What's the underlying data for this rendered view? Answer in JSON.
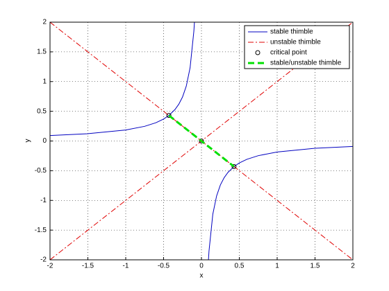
{
  "chart_data": {
    "type": "line",
    "xlabel": "x",
    "ylabel": "y",
    "xlim": [
      -2,
      2
    ],
    "ylim": [
      -2,
      2
    ],
    "xticks": [
      -2,
      -1.5,
      -1,
      -0.5,
      0,
      0.5,
      1,
      1.5,
      2
    ],
    "yticks": [
      -2,
      -1.5,
      -1,
      -0.5,
      0,
      0.5,
      1,
      1.5,
      2
    ],
    "grid": true,
    "legend": "northeast",
    "series": [
      {
        "name": "stable thimble",
        "color": "#0000c0",
        "linestyle": "solid",
        "marker": "none",
        "linewidth": 1,
        "x": [
          -2,
          -1.5,
          -1,
          -0.75,
          -0.6,
          -0.5,
          -0.43,
          -0.35,
          -0.3,
          -0.25,
          -0.2,
          -0.15,
          -0.1,
          -0.0925,
          null,
          0.0925,
          0.1,
          0.15,
          0.2,
          0.25,
          0.3,
          0.35,
          0.43,
          0.5,
          0.6,
          0.75,
          1,
          1.5,
          2
        ],
        "values": [
          0.0925,
          0.123,
          0.185,
          0.247,
          0.308,
          0.37,
          0.43,
          0.529,
          0.617,
          0.74,
          0.925,
          1.233,
          1.85,
          2,
          null,
          -2,
          -1.85,
          -1.233,
          -0.925,
          -0.74,
          -0.617,
          -0.529,
          -0.43,
          -0.37,
          -0.308,
          -0.247,
          -0.185,
          -0.123,
          -0.0925
        ]
      },
      {
        "name": "unstable thimble",
        "color": "#e00000",
        "linestyle": "dashdot",
        "marker": "none",
        "linewidth": 1,
        "x": [
          -2,
          2,
          null,
          -2,
          2
        ],
        "values": [
          -2,
          2,
          null,
          2,
          -2
        ]
      },
      {
        "name": "critical point",
        "color": "#000000",
        "linestyle": "none",
        "marker": "circle",
        "linewidth": 1,
        "x": [
          -0.43,
          0,
          0.43
        ],
        "values": [
          0.43,
          0,
          -0.43
        ]
      },
      {
        "name": "stable/unstable thimble",
        "color": "#00e000",
        "linestyle": "dashed",
        "marker": "none",
        "linewidth": 3,
        "x": [
          -0.43,
          0.43
        ],
        "values": [
          0.43,
          -0.43
        ]
      }
    ]
  }
}
